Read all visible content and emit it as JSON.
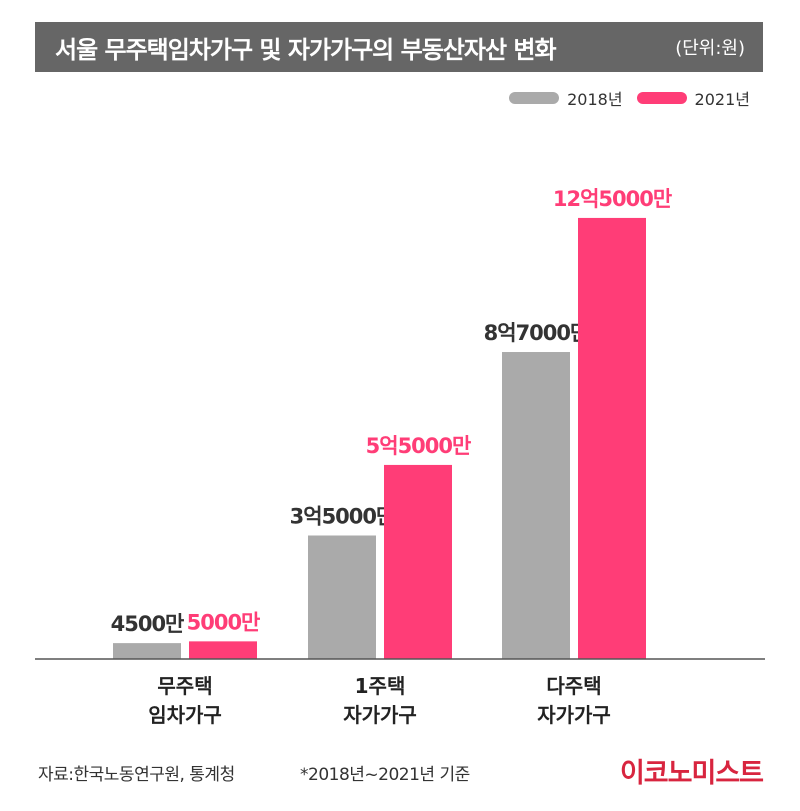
{
  "header": {
    "title": "서울 무주택임차가구 및 자가가구의 부동산자산 변화",
    "unit": "(단위:원)"
  },
  "colors": {
    "series_2018": "#aaaaaa",
    "series_2021": "#ff3d77",
    "label_2018": "#333333",
    "label_2021": "#ff3d77"
  },
  "chart_data": {
    "type": "bar",
    "categories": [
      [
        "무주택",
        "임차가구"
      ],
      [
        "1주택",
        "자가가구"
      ],
      [
        "다주택",
        "자가가구"
      ]
    ],
    "series": [
      {
        "name": "2018년",
        "values": [
          4500,
          35000,
          87000
        ],
        "labels": [
          "4500만",
          "3억5000만",
          "8억7000만"
        ]
      },
      {
        "name": "2021년",
        "values": [
          5000,
          55000,
          125000
        ],
        "labels": [
          "5000만",
          "5억5000만",
          "12억5000만"
        ]
      }
    ],
    "unit": "만원",
    "ylim": [
      0,
      140000
    ],
    "legend": "top-right",
    "grid": false
  },
  "footer": {
    "source": "자료:한국노동연구원, 통계청",
    "note": "*2018년~2021년 기준",
    "logo": "이코노미스트"
  }
}
